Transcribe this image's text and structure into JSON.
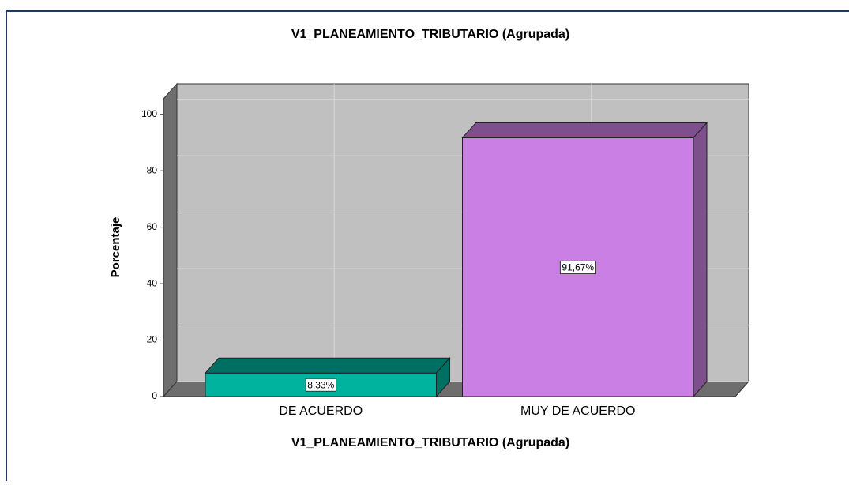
{
  "chart_data": {
    "type": "bar3d",
    "title": "V1_PLANEAMIENTO_TRIBUTARIO (Agrupada)",
    "x_label": "V1_PLANEAMIENTO_TRIBUTARIO (Agrupada)",
    "y_label": "Porcentaje",
    "categories": [
      "DE ACUERDO",
      "MUY DE ACUERDO"
    ],
    "values": [
      8.33,
      91.67
    ],
    "value_labels": [
      "8,33%",
      "91,67%"
    ],
    "colors": [
      "#00b39f",
      "#c97fe4"
    ],
    "ylim": [
      0,
      105.5
    ],
    "yticks": [
      0,
      20,
      40,
      60,
      80,
      100
    ],
    "grid": true
  }
}
